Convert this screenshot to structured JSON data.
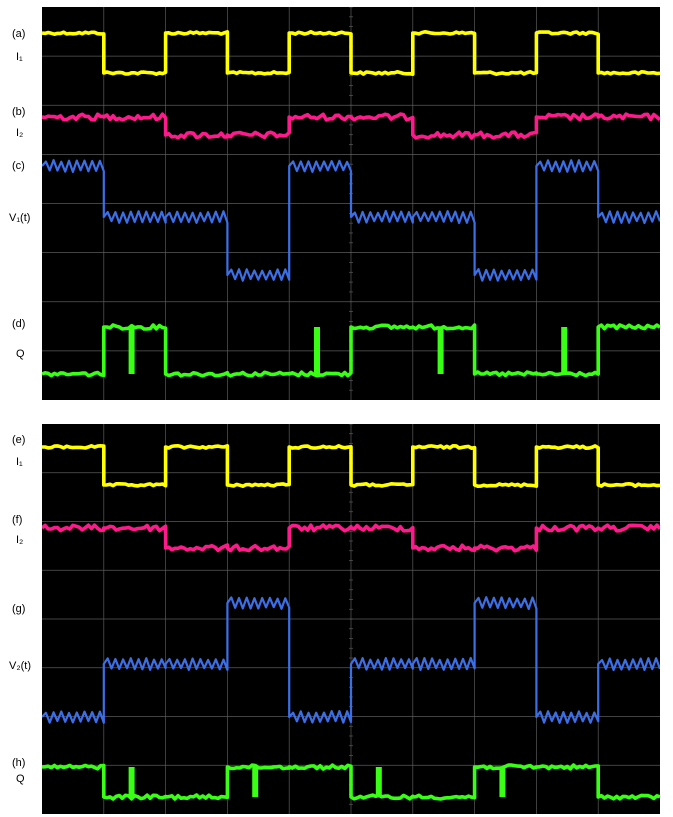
{
  "colors": {
    "background": "#000000",
    "grid": "#5a5a5a",
    "I1": "#ffff00",
    "I2": "#ff1a8c",
    "V": "#3b6fe8",
    "Q": "#39ff14"
  },
  "panels": [
    {
      "id": "top",
      "traces": [
        {
          "label": "(a)",
          "name": "I₁",
          "kind": "I1"
        },
        {
          "label": "(b)",
          "name": "I₂",
          "kind": "I2"
        },
        {
          "label": "(c)",
          "name": "V₁(t)",
          "kind": "V"
        },
        {
          "label": "(d)",
          "name": "Q",
          "kind": "Q"
        }
      ]
    },
    {
      "id": "bottom",
      "traces": [
        {
          "label": "(e)",
          "name": "I₁",
          "kind": "I1"
        },
        {
          "label": "(f)",
          "name": "I₂",
          "kind": "I2"
        },
        {
          "label": "(g)",
          "name": "V₂(t)",
          "kind": "V"
        },
        {
          "label": "(h)",
          "name": "Q",
          "kind": "Q"
        }
      ]
    }
  ],
  "chart_data": [
    {
      "type": "line",
      "panel": "top",
      "x_divisions": 10,
      "y_divisions": 8,
      "x": [
        0,
        1,
        2,
        3,
        4,
        5,
        6,
        7,
        8,
        9,
        10
      ],
      "series": [
        {
          "name": "I₁",
          "levels": [
            1,
            0,
            1,
            0,
            1,
            0,
            1,
            0,
            1,
            0
          ],
          "noise": "low"
        },
        {
          "name": "I₂",
          "levels": [
            1,
            1,
            0,
            0,
            1,
            1,
            0,
            0,
            1,
            1
          ],
          "noise": "medium"
        },
        {
          "name": "V₁(t)",
          "levels": [
            3,
            2,
            2,
            1,
            3,
            2,
            2,
            1,
            3,
            2
          ],
          "ripple": "sawtooth"
        },
        {
          "name": "Q",
          "levels": [
            0,
            1,
            0,
            0,
            0,
            1,
            1,
            0,
            0,
            1
          ],
          "glitches": [
            1.45,
            4.45,
            6.45,
            8.45
          ]
        }
      ]
    },
    {
      "type": "line",
      "panel": "bottom",
      "x_divisions": 10,
      "y_divisions": 8,
      "x": [
        0,
        1,
        2,
        3,
        4,
        5,
        6,
        7,
        8,
        9,
        10
      ],
      "series": [
        {
          "name": "I₁",
          "levels": [
            1,
            0,
            1,
            0,
            1,
            0,
            1,
            0,
            1,
            0
          ],
          "noise": "low"
        },
        {
          "name": "I₂",
          "levels": [
            1,
            1,
            0,
            0,
            1,
            1,
            0,
            0,
            1,
            1
          ],
          "noise": "medium"
        },
        {
          "name": "V₂(t)",
          "levels": [
            1,
            2,
            2,
            3,
            1,
            2,
            2,
            3,
            1,
            2
          ],
          "ripple": "sawtooth"
        },
        {
          "name": "Q",
          "levels": [
            1,
            0,
            0,
            1,
            1,
            0,
            0,
            1,
            1,
            0
          ],
          "glitches": [
            1.45,
            3.45,
            5.45,
            7.45
          ]
        }
      ]
    }
  ]
}
